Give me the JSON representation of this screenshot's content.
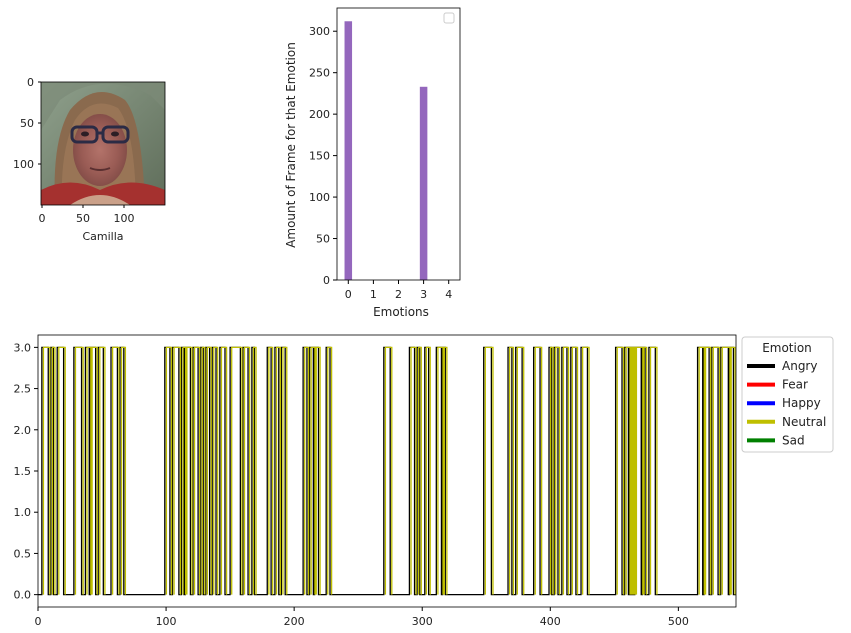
{
  "face_panel": {
    "xlabel": "Camilla",
    "x_ticks": [
      "0",
      "50",
      "100"
    ],
    "y_ticks": [
      "0",
      "50",
      "100"
    ]
  },
  "chart_data": [
    {
      "type": "bar",
      "title": "",
      "xlabel": "Emotions",
      "ylabel": "Amount of Frame for that Emotion",
      "categories": [
        "0",
        "1",
        "2",
        "3",
        "4"
      ],
      "values": [
        312,
        0,
        0,
        233,
        0
      ],
      "bar_color": "#9467bd",
      "ylim": [
        0,
        328
      ],
      "y_ticks": [
        0,
        50,
        100,
        150,
        200,
        250,
        300
      ],
      "legend": "top-right (empty)"
    },
    {
      "type": "line",
      "title": "",
      "xlim": [
        0,
        545
      ],
      "ylim": [
        -0.15,
        3.15
      ],
      "x_ticks": [
        0,
        100,
        200,
        300,
        400,
        500
      ],
      "y_ticks": [
        "0.0",
        "0.5",
        "1.0",
        "1.5",
        "2.0",
        "2.5",
        "3.0"
      ],
      "high_intervals": [
        [
          3,
          8
        ],
        [
          10,
          12
        ],
        [
          15,
          20
        ],
        [
          28,
          34
        ],
        [
          37,
          40
        ],
        [
          41,
          45
        ],
        [
          47,
          51
        ],
        [
          57,
          62
        ],
        [
          64,
          67
        ],
        [
          99,
          103
        ],
        [
          105,
          110
        ],
        [
          112,
          114
        ],
        [
          115,
          119
        ],
        [
          121,
          125
        ],
        [
          127,
          129
        ],
        [
          131,
          134
        ],
        [
          136,
          139
        ],
        [
          142,
          146
        ],
        [
          150,
          158
        ],
        [
          160,
          164
        ],
        [
          167,
          169
        ],
        [
          179,
          182
        ],
        [
          185,
          188
        ],
        [
          190,
          193
        ],
        [
          207,
          210
        ],
        [
          212,
          215
        ],
        [
          216,
          219
        ],
        [
          225,
          228
        ],
        [
          270,
          275
        ],
        [
          290,
          294
        ],
        [
          296,
          298
        ],
        [
          302,
          305
        ],
        [
          311,
          315
        ],
        [
          316,
          318
        ],
        [
          348,
          354
        ],
        [
          367,
          370
        ],
        [
          373,
          378
        ],
        [
          387,
          392
        ],
        [
          399,
          401
        ],
        [
          403,
          406
        ],
        [
          409,
          413
        ],
        [
          416,
          420
        ],
        [
          424,
          429
        ],
        [
          451,
          456
        ],
        [
          458,
          461
        ],
        [
          462,
          463
        ],
        [
          464,
          465
        ],
        [
          466,
          471
        ],
        [
          472,
          474
        ],
        [
          477,
          482
        ],
        [
          515,
          519
        ],
        [
          520,
          524
        ],
        [
          526,
          531
        ],
        [
          533,
          539
        ],
        [
          540,
          543
        ]
      ],
      "legend": {
        "title": "Emotion",
        "placement": "outside-right",
        "items": [
          {
            "label": "Angry",
            "color": "#000000"
          },
          {
            "label": "Fear",
            "color": "#ff0000"
          },
          {
            "label": "Happy",
            "color": "#0000ff"
          },
          {
            "label": "Neutral",
            "color": "#bfbf00"
          },
          {
            "label": "Sad",
            "color": "#008000"
          }
        ]
      }
    }
  ]
}
